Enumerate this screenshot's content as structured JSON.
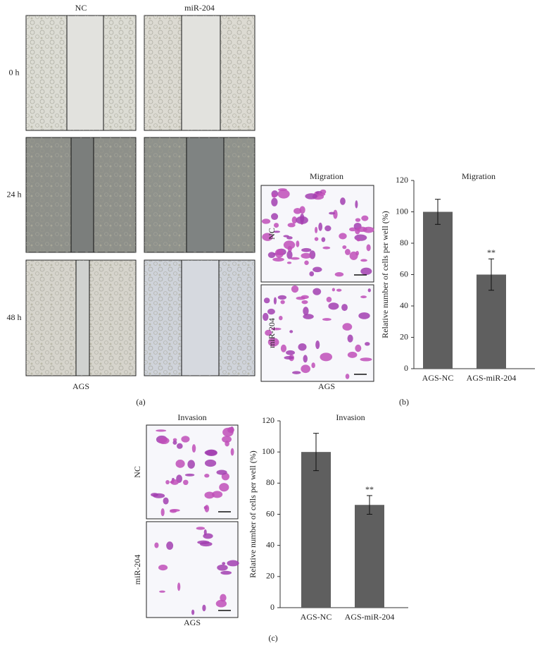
{
  "figure": {
    "a": {
      "columns": [
        "NC",
        "miR-204"
      ],
      "rows": [
        "0 h",
        "24 h",
        "48 h"
      ],
      "cell_line": "AGS",
      "label": "(a)"
    },
    "b": {
      "title": "Migration",
      "rows": [
        "NC",
        "miR-204"
      ],
      "cell_line": "AGS",
      "label": "(b)"
    },
    "c": {
      "title": "Invasion",
      "rows": [
        "NC",
        "miR-204"
      ],
      "cell_line": "AGS",
      "label": "(c)"
    }
  },
  "chart_data": [
    {
      "type": "bar",
      "title": "Migration",
      "y_label": "Relative number of cells per well (%)",
      "categories": [
        "AGS-NC",
        "AGS-miR-204"
      ],
      "values": [
        100,
        60
      ],
      "errors": [
        8,
        10
      ],
      "significance": [
        null,
        "**"
      ],
      "color": "#5f5f5f",
      "ylim": [
        0,
        120
      ],
      "yticks": [
        0,
        20,
        40,
        60,
        80,
        100,
        120
      ]
    },
    {
      "type": "bar",
      "title": "Invasion",
      "y_label": "Relative number of cells per well (%)",
      "categories": [
        "AGS-NC",
        "AGS-miR-204"
      ],
      "values": [
        100,
        66
      ],
      "errors": [
        12,
        6
      ],
      "significance": [
        null,
        "**"
      ],
      "color": "#5f5f5f",
      "ylim": [
        0,
        120
      ],
      "yticks": [
        0,
        20,
        40,
        60,
        80,
        100,
        120
      ]
    }
  ]
}
